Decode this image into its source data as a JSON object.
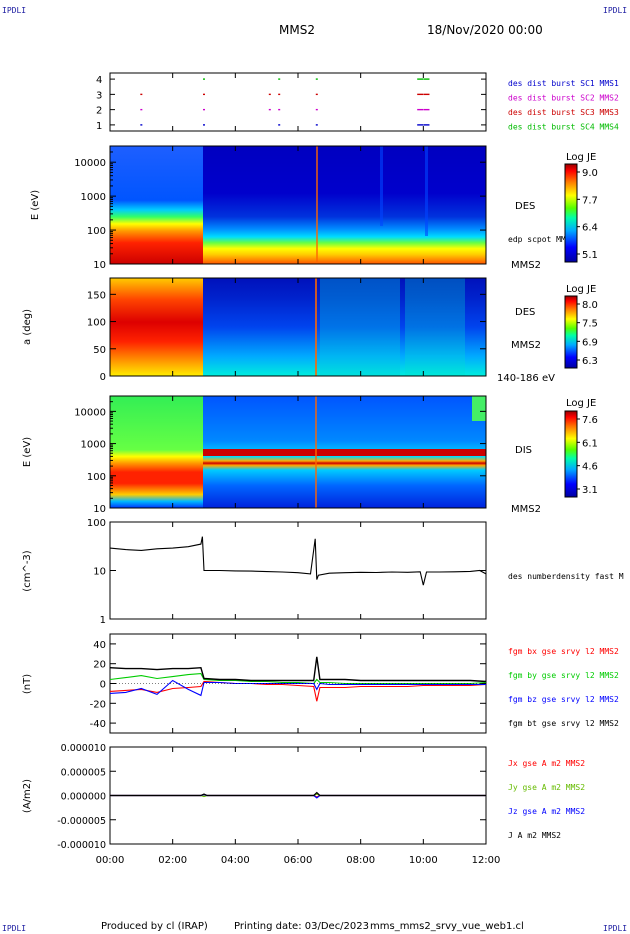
{
  "header": {
    "corner_tl": "IPDLI",
    "corner_tr": "IPDLI",
    "corner_bl": "IPDLI",
    "corner_br": "IPDLI",
    "spacecraft": "MMS2",
    "datetime": "18/Nov/2020 00:00"
  },
  "footer": {
    "produced": "Produced by cl (IRAP)",
    "printing": "Printing date: 03/Dec/2023",
    "file": "mms_mms2_srvy_vue_web1.cl"
  },
  "chart_data": [
    {
      "type": "scatter",
      "panel": "burst-availability",
      "yticks": [
        "1",
        "2",
        "3",
        "4"
      ],
      "ylim": [
        0.6,
        4.4
      ],
      "legend": [
        {
          "label": "des dist burst SC1 MMS1",
          "color": "#0000cc"
        },
        {
          "label": "des dist burst SC2 MMS2",
          "color": "#cc00cc"
        },
        {
          "label": "des dist burst SC3 MMS3",
          "color": "#cc0000"
        },
        {
          "label": "des dist burst SC4 MMS4",
          "color": "#00bb00"
        }
      ],
      "series": [
        {
          "name": "des dist burst SC1 MMS1",
          "y": 1,
          "color": "#0000cc",
          "x": [
            1.0,
            3.0,
            5.4,
            6.6,
            9.9,
            10.1
          ]
        },
        {
          "name": "des dist burst SC2 MMS2",
          "y": 2,
          "color": "#cc00cc",
          "x": [
            1.0,
            3.0,
            5.1,
            5.4,
            6.6,
            9.9,
            10.1
          ]
        },
        {
          "name": "des dist burst SC3 MMS3",
          "y": 3,
          "color": "#cc0000",
          "x": [
            1.0,
            3.0,
            5.1,
            5.4,
            6.6,
            9.9,
            10.1
          ]
        },
        {
          "name": "des dist burst SC4 MMS4",
          "y": 4,
          "color": "#00bb00",
          "x": [
            3.0,
            5.4,
            6.6,
            9.9,
            10.1
          ]
        }
      ]
    },
    {
      "type": "heatmap",
      "panel": "des-energy",
      "ylabel": "E (eV)",
      "yscale": "log",
      "ylim": [
        10,
        30000
      ],
      "yticks": [
        "10",
        "100",
        "1000",
        "10000"
      ],
      "right_label": "DES",
      "right_label2": "edp scpot MMS2",
      "bottom_label": "MMS2",
      "colorbar": {
        "title": "Log JE",
        "ticks": [
          "9.0",
          "7.7",
          "6.4",
          "5.1"
        ]
      }
    },
    {
      "type": "heatmap",
      "panel": "des-pitch",
      "ylabel": "a (deg)",
      "ylim": [
        0,
        180
      ],
      "yticks": [
        "0",
        "50",
        "100",
        "150"
      ],
      "right_label": "DES",
      "right_label2": "MMS2",
      "bottom_label": "140-186 eV",
      "colorbar": {
        "title": "Log JE",
        "ticks": [
          "8.0",
          "7.5",
          "6.9",
          "6.3"
        ]
      }
    },
    {
      "type": "heatmap",
      "panel": "dis-energy",
      "ylabel": "E (eV)",
      "yscale": "log",
      "ylim": [
        10,
        30000
      ],
      "yticks": [
        "10",
        "100",
        "1000",
        "10000"
      ],
      "right_label": "DIS",
      "bottom_label": "MMS2",
      "colorbar": {
        "title": "Log JE",
        "ticks": [
          "7.6",
          "6.1",
          "4.6",
          "3.1"
        ]
      }
    },
    {
      "type": "line",
      "panel": "density",
      "ylabel": "(cm^-3)",
      "yscale": "log",
      "ylim": [
        1,
        100
      ],
      "yticks": [
        "1",
        "10",
        "100"
      ],
      "series": [
        {
          "name": "des numberdensity fast M",
          "color": "#000000",
          "x": [
            0.0,
            0.5,
            1.0,
            1.5,
            2.0,
            2.5,
            2.9,
            2.95,
            3.0,
            3.5,
            4.0,
            4.5,
            5.0,
            5.5,
            6.0,
            6.4,
            6.55,
            6.6,
            6.65,
            7.0,
            7.5,
            8.0,
            8.5,
            9.0,
            9.5,
            9.9,
            10.0,
            10.1,
            10.5,
            11.0,
            11.5,
            11.8,
            12.0
          ],
          "y": [
            29,
            27,
            26,
            28,
            29,
            31,
            35,
            50,
            10,
            10,
            9.8,
            9.7,
            9.5,
            9.3,
            9.0,
            8.5,
            45,
            6.5,
            8.0,
            8.8,
            9.0,
            9.2,
            9.1,
            9.3,
            9.2,
            9.4,
            5.0,
            9.3,
            9.3,
            9.4,
            9.6,
            10.0,
            8.5
          ]
        }
      ]
    },
    {
      "type": "line",
      "panel": "fgm",
      "ylabel": "(nT)",
      "ylim": [
        -50,
        50
      ],
      "yticks": [
        "40",
        "20",
        "0",
        "-20",
        "-40"
      ],
      "series": [
        {
          "name": "fgm bx gse srvy l2 MMS2",
          "color": "#ff0000",
          "x": [
            0,
            0.5,
            1,
            1.5,
            2,
            2.5,
            2.9,
            3.0,
            3.5,
            4,
            4.5,
            5,
            5.5,
            6,
            6.5,
            6.6,
            6.7,
            7,
            7.5,
            8,
            8.5,
            9,
            9.5,
            10,
            10.5,
            11,
            11.5,
            12
          ],
          "y": [
            -8,
            -7,
            -6,
            -9,
            -5,
            -4,
            -3,
            2,
            1,
            0,
            0,
            -1,
            -1,
            -2,
            -3,
            -18,
            -4,
            -4,
            -4,
            -3,
            -3,
            -3,
            -3,
            -2,
            -2,
            -2,
            -2,
            -1
          ]
        },
        {
          "name": "fgm by gse srvy l2 MMS2",
          "color": "#00cc00",
          "x": [
            0,
            0.5,
            1,
            1.5,
            2,
            2.5,
            2.9,
            3.0,
            3.5,
            4,
            4.5,
            5,
            5.5,
            6,
            6.5,
            6.6,
            6.7,
            7,
            7.5,
            8,
            8.5,
            9,
            9.5,
            10,
            10.5,
            11,
            11.5,
            12
          ],
          "y": [
            4,
            6,
            8,
            5,
            7,
            9,
            10,
            4,
            3,
            3,
            2,
            2,
            1,
            1,
            0,
            4,
            1,
            1,
            0,
            0,
            0,
            0,
            0,
            0,
            0,
            0,
            0,
            1
          ]
        },
        {
          "name": "fgm bz gse srvy l2 MMS2",
          "color": "#0000ff",
          "x": [
            0,
            0.5,
            1,
            1.5,
            2,
            2.5,
            2.9,
            3.0,
            3.5,
            4,
            4.5,
            5,
            5.5,
            6,
            6.5,
            6.6,
            6.7,
            7,
            7.5,
            8,
            8.5,
            9,
            9.5,
            10,
            10.5,
            11,
            11.5,
            12
          ],
          "y": [
            -10,
            -9,
            -5,
            -11,
            3,
            -6,
            -12,
            1,
            1,
            0,
            0,
            0,
            0,
            0,
            0,
            -6,
            0,
            -1,
            -1,
            -1,
            -1,
            -1,
            -1,
            -1,
            -1,
            -1,
            -1,
            -1
          ]
        },
        {
          "name": "fgm bt gse srvy l2 MMS2",
          "color": "#000000",
          "x": [
            0,
            0.5,
            1,
            1.5,
            2,
            2.5,
            2.9,
            3.0,
            3.5,
            4,
            4.5,
            5,
            5.5,
            6,
            6.5,
            6.6,
            6.7,
            7,
            7.5,
            8,
            8.5,
            9,
            9.5,
            10,
            10.5,
            11,
            11.5,
            12
          ],
          "y": [
            16,
            15,
            15,
            14,
            15,
            15,
            16,
            5,
            4,
            4,
            3,
            3,
            3,
            3,
            3,
            27,
            4,
            4,
            4,
            3,
            3,
            3,
            3,
            3,
            3,
            3,
            3,
            2
          ]
        }
      ]
    },
    {
      "type": "line",
      "panel": "current",
      "ylabel": "(A/m2)",
      "ylim": [
        -1e-05,
        1e-05
      ],
      "yticks": [
        "0.000010",
        "0.000005",
        "0.000000",
        "-0.000005",
        "-0.000010"
      ],
      "series": [
        {
          "name": "Jx gse A m2 MMS2",
          "color": "#ff0000",
          "x": [
            0,
            2.9,
            3.0,
            3.1,
            6.5,
            6.6,
            6.7,
            12
          ],
          "y": [
            0,
            0,
            2e-07,
            0,
            0,
            -3e-07,
            0,
            0
          ]
        },
        {
          "name": "Jy gse A m2 MMS2",
          "color": "#66bb00",
          "x": [
            0,
            2.9,
            3.0,
            3.1,
            6.5,
            6.6,
            6.7,
            12
          ],
          "y": [
            0,
            0,
            -2e-07,
            0,
            0,
            3e-07,
            0,
            0
          ]
        },
        {
          "name": "Jz gse A m2 MMS2",
          "color": "#0000ff",
          "x": [
            0,
            2.9,
            3.0,
            3.1,
            6.5,
            6.6,
            6.7,
            12
          ],
          "y": [
            0,
            0,
            2e-07,
            0,
            0,
            -5e-07,
            0,
            0
          ]
        },
        {
          "name": "J A m2 MMS2",
          "color": "#000000",
          "x": [
            0,
            2.9,
            3.0,
            3.1,
            6.5,
            6.6,
            6.7,
            12
          ],
          "y": [
            0,
            0,
            3e-07,
            0,
            0,
            6e-07,
            0,
            0
          ]
        }
      ]
    }
  ],
  "time_axis": {
    "xlim": [
      0,
      12
    ],
    "ticks": [
      "00:00",
      "02:00",
      "04:00",
      "06:00",
      "08:00",
      "10:00",
      "12:00"
    ]
  }
}
